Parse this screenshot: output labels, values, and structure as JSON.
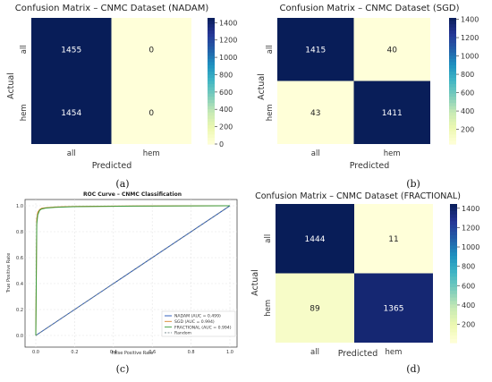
{
  "colors": {
    "dark": "#0c1f5b",
    "light": "#fdfdd2",
    "nadam": "#1f4fb8",
    "sgd": "#d9842a",
    "fractional": "#3b9b3b",
    "random": "#6f8086"
  },
  "chart_data": [
    {
      "type": "heatmap",
      "title": "Confusion Matrix – CNMC Dataset (NADAM)",
      "xlabel": "Predicted",
      "ylabel": "Actual",
      "x_categories": [
        "all",
        "hem"
      ],
      "y_categories": [
        "all",
        "hem"
      ],
      "values": [
        [
          1455,
          0
        ],
        [
          1454,
          0
        ]
      ],
      "colorbar_ticks": [
        "1400",
        "1200",
        "1000",
        "800",
        "600",
        "400",
        "200",
        "0"
      ],
      "colorbar_range": [
        0,
        1455
      ],
      "caption": "(a)"
    },
    {
      "type": "heatmap",
      "title": "Confusion Matrix – CNMC Dataset (SGD)",
      "xlabel": "Predicted",
      "ylabel": "Actual",
      "x_categories": [
        "all",
        "hem"
      ],
      "y_categories": [
        "all",
        "hem"
      ],
      "values": [
        [
          1415,
          40
        ],
        [
          43,
          1411
        ]
      ],
      "colorbar_ticks": [
        "1400",
        "1200",
        "1000",
        "800",
        "600",
        "400",
        "200"
      ],
      "colorbar_range": [
        40,
        1415
      ],
      "caption": "(b)"
    },
    {
      "type": "line",
      "title": "ROC Curve – CNMC Classification",
      "xlabel": "False Positive Rate",
      "ylabel": "True Positive Rate",
      "xlim": [
        0,
        1
      ],
      "ylim": [
        0,
        1
      ],
      "x_ticks": [
        "0.0",
        "0.2",
        "0.4",
        "0.6",
        "0.8",
        "1.0"
      ],
      "y_ticks": [
        "0.0",
        "0.2",
        "0.4",
        "0.6",
        "0.8",
        "1.0"
      ],
      "grid": true,
      "legend_position": "lower-right",
      "series": [
        {
          "name": "NADAM (AUC = 0.499)",
          "x": [
            0,
            1
          ],
          "y": [
            0,
            1
          ]
        },
        {
          "name": "SGD (AUC = 0.994)",
          "x": [
            0,
            0.005,
            0.01,
            0.02,
            0.03,
            0.05,
            0.1,
            0.2,
            0.5,
            1.0
          ],
          "y": [
            0,
            0.9,
            0.95,
            0.97,
            0.98,
            0.985,
            0.99,
            0.995,
            0.998,
            1.0
          ]
        },
        {
          "name": "FRACTIONAL (AUC = 0.994)",
          "x": [
            0,
            0.005,
            0.01,
            0.02,
            0.03,
            0.05,
            0.1,
            0.2,
            0.5,
            1.0
          ],
          "y": [
            0,
            0.86,
            0.93,
            0.965,
            0.975,
            0.982,
            0.988,
            0.993,
            0.997,
            1.0
          ]
        },
        {
          "name": "Random",
          "x": [
            0,
            1
          ],
          "y": [
            0,
            1
          ]
        }
      ],
      "caption": "(c)"
    },
    {
      "type": "heatmap",
      "title": "Confusion Matrix – CNMC Dataset (FRACTIONAL)",
      "xlabel": "Predicted",
      "ylabel": "Actual",
      "x_categories": [
        "all",
        "hem"
      ],
      "y_categories": [
        "all",
        "hem"
      ],
      "values": [
        [
          1444,
          11
        ],
        [
          89,
          1365
        ]
      ],
      "colorbar_ticks": [
        "1400",
        "1200",
        "1000",
        "800",
        "600",
        "400",
        "200"
      ],
      "colorbar_range": [
        11,
        1444
      ],
      "caption": "(d)"
    }
  ]
}
